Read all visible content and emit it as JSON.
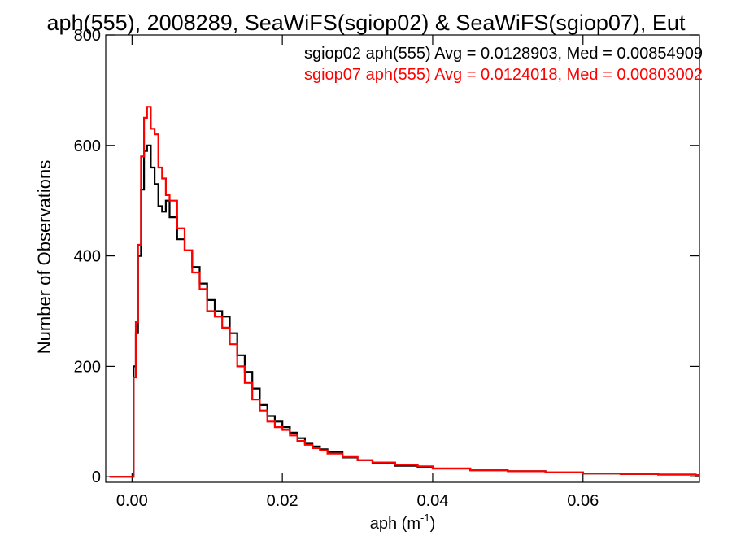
{
  "chart_data": {
    "type": "line",
    "title": "aph(555), 2008289, SeaWiFS(sgiop02) & SeaWiFS(sgiop07), Eut",
    "xlabel": "aph (m",
    "xlabel_exp": "-1",
    "xlabel_close": ")",
    "ylabel": "Number of Observations",
    "xlim": [
      -0.0035,
      0.0755
    ],
    "ylim": [
      -10,
      800
    ],
    "x_ticks": [
      0.0,
      0.02,
      0.04,
      0.06
    ],
    "x_tick_labels": [
      "0.00",
      "0.02",
      "0.04",
      "0.06"
    ],
    "y_ticks": [
      0,
      200,
      400,
      600,
      800
    ],
    "y_tick_labels": [
      "0",
      "200",
      "400",
      "600",
      "800"
    ],
    "grid": false,
    "colors": {
      "sgiop02": "#000000",
      "sgiop07": "#ff0000"
    },
    "annotations": [
      {
        "text": "sgiop02 aph(555) Avg = 0.0128903, Med = 0.00854909",
        "color": "#000000"
      },
      {
        "text": "sgiop07 aph(555) Avg = 0.0124018, Med = 0.00803002",
        "color": "#ff0000"
      }
    ],
    "series": [
      {
        "key": "sgiop02",
        "step": true,
        "x": [
          -0.003,
          0.0,
          0.0002,
          0.0005,
          0.0008,
          0.0012,
          0.0016,
          0.002,
          0.0025,
          0.003,
          0.0035,
          0.004,
          0.0045,
          0.005,
          0.006,
          0.007,
          0.008,
          0.009,
          0.01,
          0.011,
          0.012,
          0.013,
          0.014,
          0.015,
          0.016,
          0.017,
          0.018,
          0.019,
          0.02,
          0.021,
          0.022,
          0.023,
          0.024,
          0.025,
          0.026,
          0.028,
          0.03,
          0.032,
          0.035,
          0.038,
          0.04,
          0.045,
          0.05,
          0.055,
          0.06,
          0.065,
          0.07,
          0.075
        ],
        "y": [
          0,
          0,
          200,
          260,
          400,
          520,
          590,
          600,
          560,
          530,
          490,
          480,
          500,
          470,
          430,
          410,
          380,
          350,
          320,
          300,
          290,
          260,
          220,
          190,
          160,
          130,
          110,
          100,
          90,
          80,
          70,
          60,
          55,
          50,
          45,
          35,
          30,
          25,
          20,
          18,
          15,
          12,
          10,
          8,
          6,
          5,
          4,
          3
        ]
      },
      {
        "key": "sgiop07",
        "step": true,
        "x": [
          -0.003,
          0.0,
          0.0002,
          0.0005,
          0.0008,
          0.0012,
          0.0016,
          0.002,
          0.0025,
          0.003,
          0.0035,
          0.004,
          0.0045,
          0.005,
          0.006,
          0.007,
          0.008,
          0.009,
          0.01,
          0.011,
          0.012,
          0.013,
          0.014,
          0.015,
          0.016,
          0.017,
          0.018,
          0.019,
          0.02,
          0.021,
          0.022,
          0.023,
          0.024,
          0.025,
          0.026,
          0.028,
          0.03,
          0.032,
          0.035,
          0.038,
          0.04,
          0.045,
          0.05,
          0.055,
          0.06,
          0.065,
          0.07,
          0.075
        ],
        "y": [
          0,
          0,
          180,
          280,
          420,
          580,
          650,
          670,
          630,
          620,
          560,
          540,
          510,
          500,
          450,
          410,
          370,
          340,
          300,
          290,
          270,
          240,
          200,
          170,
          140,
          120,
          100,
          90,
          85,
          75,
          65,
          58,
          52,
          48,
          42,
          36,
          30,
          26,
          22,
          19,
          15,
          12,
          10,
          8,
          6,
          5,
          4,
          3
        ]
      }
    ]
  }
}
